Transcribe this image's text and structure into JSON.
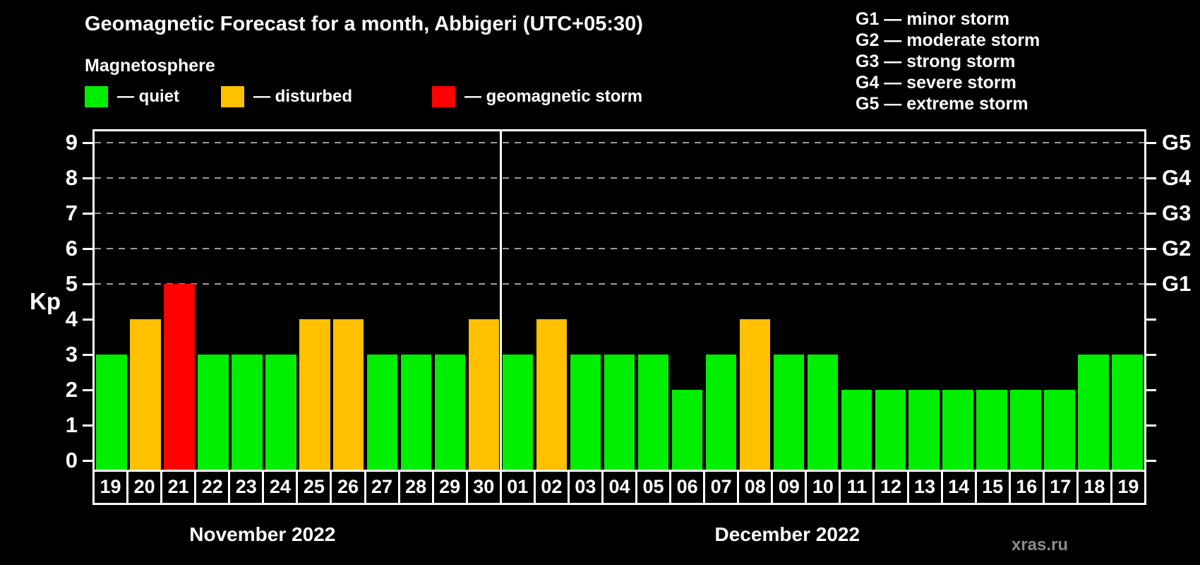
{
  "header": {
    "title": "Geomagnetic Forecast for a month, Abbigeri (UTC+05:30)"
  },
  "legend": {
    "title": "Magnetosphere",
    "items": [
      {
        "key": "quiet",
        "label": "— quiet",
        "color": "#00ee00"
      },
      {
        "key": "disturbed",
        "label": "— disturbed",
        "color": "#ffc000"
      },
      {
        "key": "storm",
        "label": "— geomagnetic storm",
        "color": "#ff0000"
      }
    ]
  },
  "g_legend": {
    "items": [
      "G1 — minor storm",
      "G2 — moderate storm",
      "G3 — strong storm",
      "G4 — severe storm",
      "G5 — extreme storm"
    ]
  },
  "watermark": "xras.ru",
  "chart_data": {
    "type": "bar",
    "title": "Geomagnetic Forecast for a month, Abbigeri (UTC+05:30)",
    "ylabel": "Kp",
    "ylim": [
      0,
      9.3
    ],
    "y_ticks": [
      0,
      1,
      2,
      3,
      4,
      5,
      6,
      7,
      8,
      9
    ],
    "gridline_kp": [
      5,
      6,
      7,
      8,
      9
    ],
    "right_axis": [
      {
        "kp": 5,
        "label": "G1"
      },
      {
        "kp": 6,
        "label": "G2"
      },
      {
        "kp": 7,
        "label": "G3"
      },
      {
        "kp": 8,
        "label": "G4"
      },
      {
        "kp": 9,
        "label": "G5"
      }
    ],
    "status_colors": {
      "quiet": "#00ee00",
      "disturbed": "#ffc000",
      "storm": "#ff0000"
    },
    "months": [
      {
        "label": "November 2022",
        "day_count": 12
      },
      {
        "label": "December 2022",
        "day_count": 19
      }
    ],
    "days": [
      {
        "month": "November",
        "day": "19",
        "kp": 3,
        "status": "quiet"
      },
      {
        "month": "November",
        "day": "20",
        "kp": 4,
        "status": "disturbed"
      },
      {
        "month": "November",
        "day": "21",
        "kp": 5,
        "status": "storm"
      },
      {
        "month": "November",
        "day": "22",
        "kp": 3,
        "status": "quiet"
      },
      {
        "month": "November",
        "day": "23",
        "kp": 3,
        "status": "quiet"
      },
      {
        "month": "November",
        "day": "24",
        "kp": 3,
        "status": "quiet"
      },
      {
        "month": "November",
        "day": "25",
        "kp": 4,
        "status": "disturbed"
      },
      {
        "month": "November",
        "day": "26",
        "kp": 4,
        "status": "disturbed"
      },
      {
        "month": "November",
        "day": "27",
        "kp": 3,
        "status": "quiet"
      },
      {
        "month": "November",
        "day": "28",
        "kp": 3,
        "status": "quiet"
      },
      {
        "month": "November",
        "day": "29",
        "kp": 3,
        "status": "quiet"
      },
      {
        "month": "November",
        "day": "30",
        "kp": 4,
        "status": "disturbed"
      },
      {
        "month": "December",
        "day": "01",
        "kp": 3,
        "status": "quiet"
      },
      {
        "month": "December",
        "day": "02",
        "kp": 4,
        "status": "disturbed"
      },
      {
        "month": "December",
        "day": "03",
        "kp": 3,
        "status": "quiet"
      },
      {
        "month": "December",
        "day": "04",
        "kp": 3,
        "status": "quiet"
      },
      {
        "month": "December",
        "day": "05",
        "kp": 3,
        "status": "quiet"
      },
      {
        "month": "December",
        "day": "06",
        "kp": 2,
        "status": "quiet"
      },
      {
        "month": "December",
        "day": "07",
        "kp": 3,
        "status": "quiet"
      },
      {
        "month": "December",
        "day": "08",
        "kp": 4,
        "status": "disturbed"
      },
      {
        "month": "December",
        "day": "09",
        "kp": 3,
        "status": "quiet"
      },
      {
        "month": "December",
        "day": "10",
        "kp": 3,
        "status": "quiet"
      },
      {
        "month": "December",
        "day": "11",
        "kp": 2,
        "status": "quiet"
      },
      {
        "month": "December",
        "day": "12",
        "kp": 2,
        "status": "quiet"
      },
      {
        "month": "December",
        "day": "13",
        "kp": 2,
        "status": "quiet"
      },
      {
        "month": "December",
        "day": "14",
        "kp": 2,
        "status": "quiet"
      },
      {
        "month": "December",
        "day": "15",
        "kp": 2,
        "status": "quiet"
      },
      {
        "month": "December",
        "day": "16",
        "kp": 2,
        "status": "quiet"
      },
      {
        "month": "December",
        "day": "17",
        "kp": 2,
        "status": "quiet"
      },
      {
        "month": "December",
        "day": "18",
        "kp": 3,
        "status": "quiet"
      },
      {
        "month": "December",
        "day": "19",
        "kp": 3,
        "status": "quiet"
      }
    ]
  }
}
